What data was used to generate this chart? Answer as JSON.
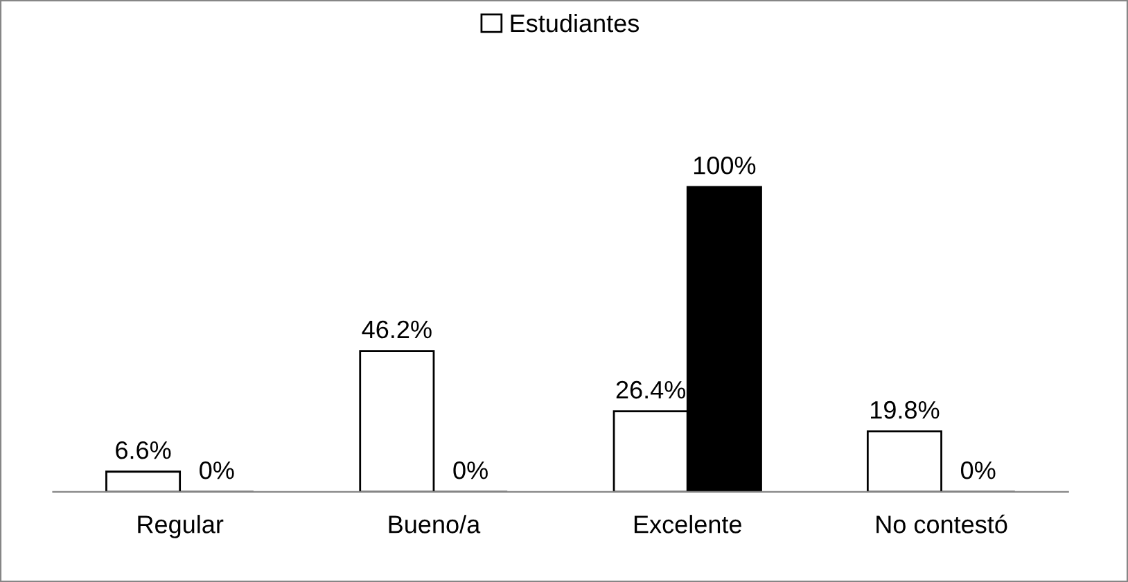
{
  "chart_data": {
    "type": "bar",
    "categories": [
      "Regular",
      "Bueno/a",
      "Excelente",
      "No contestó"
    ],
    "series": [
      {
        "name": "Estudiantes",
        "color": "#ffffff",
        "values": [
          6.6,
          46.2,
          26.4,
          19.8
        ],
        "value_labels": [
          "6.6%",
          "46.2%",
          "26.4%",
          "19.8%"
        ]
      },
      {
        "color": "#000000",
        "values": [
          0,
          0,
          100,
          0
        ],
        "value_labels": [
          "0%",
          "0%",
          "100%",
          "0%"
        ]
      }
    ],
    "legend": "top",
    "tick_labels": "x",
    "grid": false
  }
}
